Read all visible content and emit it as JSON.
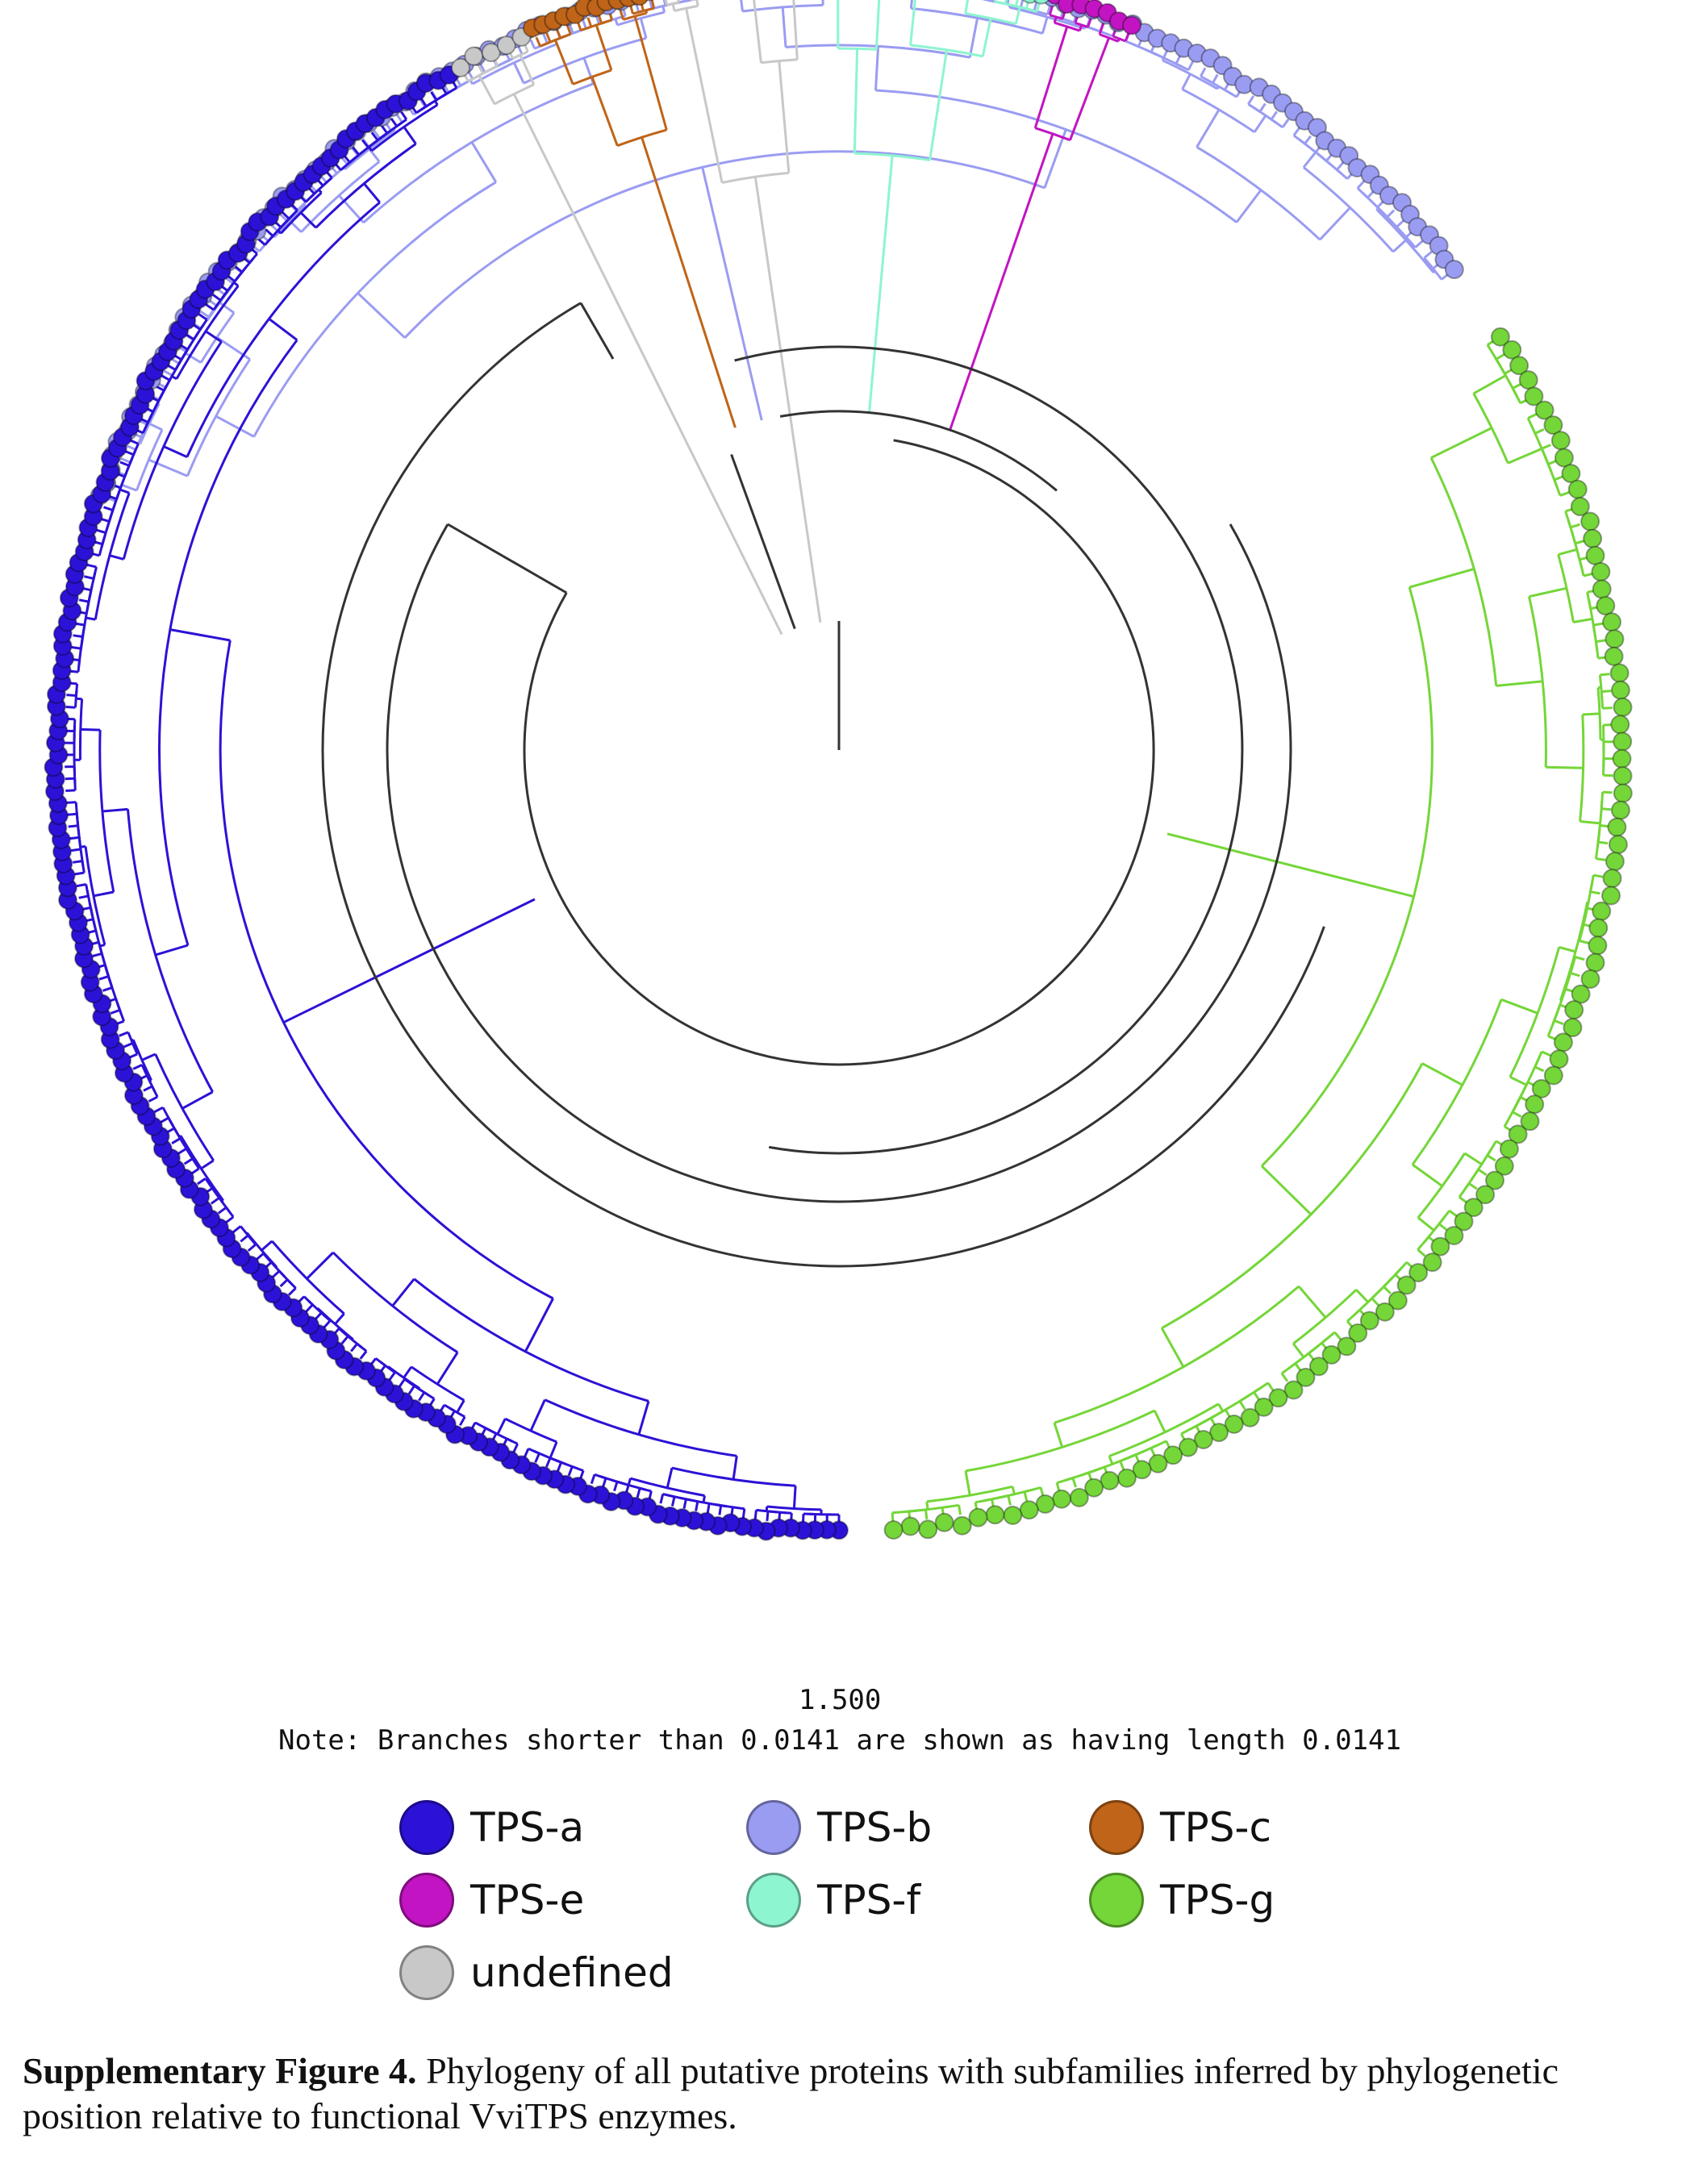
{
  "figure": {
    "scale_bar_label": "1.500",
    "note": "Note: Branches shorter than 0.0141 are shown as having length 0.0141"
  },
  "legend": [
    {
      "label": "TPS-a",
      "color": "#2c12d6",
      "key": "tps_a"
    },
    {
      "label": "TPS-b",
      "color": "#9a9cf2",
      "key": "tps_b"
    },
    {
      "label": "TPS-c",
      "color": "#bf6419",
      "key": "tps_c"
    },
    {
      "label": "TPS-e",
      "color": "#c214c2",
      "key": "tps_e"
    },
    {
      "label": "TPS-f",
      "color": "#8df5cf",
      "key": "tps_f"
    },
    {
      "label": "TPS-g",
      "color": "#74d638",
      "key": "tps_g"
    },
    {
      "label": "undefined",
      "color": "#c8c8c8",
      "key": "undefined"
    }
  ],
  "tree": {
    "backbone_color": "#333333",
    "clades": [
      {
        "key": "tps_b",
        "start_angle": -71,
        "end_angle": 52,
        "count": 120
      },
      {
        "key": "tps_g",
        "start_angle": 58,
        "end_angle": 176,
        "count": 95
      },
      {
        "key": "tps_a",
        "start_angle": 180,
        "end_angle": 330,
        "count": 170
      },
      {
        "key": "undefined",
        "start_angle": 331,
        "end_angle": 336,
        "count": 5
      },
      {
        "key": "tps_c",
        "start_angle": 337,
        "end_angle": 346,
        "count": 12
      },
      {
        "key": "undefined",
        "start_angle": 347,
        "end_angle": 357,
        "count": 12
      },
      {
        "key": "tps_f",
        "start_angle": 358,
        "end_angle": 375,
        "count": 22
      },
      {
        "key": "tps_e",
        "start_angle": 376,
        "end_angle": 382,
        "count": 7
      }
    ]
  },
  "caption": {
    "bold": "Supplementary Figure 4.",
    "text": " Phylogeny of all putative proteins with subfamilies inferred by phylogenetic position relative to functional VviTPS enzymes."
  }
}
